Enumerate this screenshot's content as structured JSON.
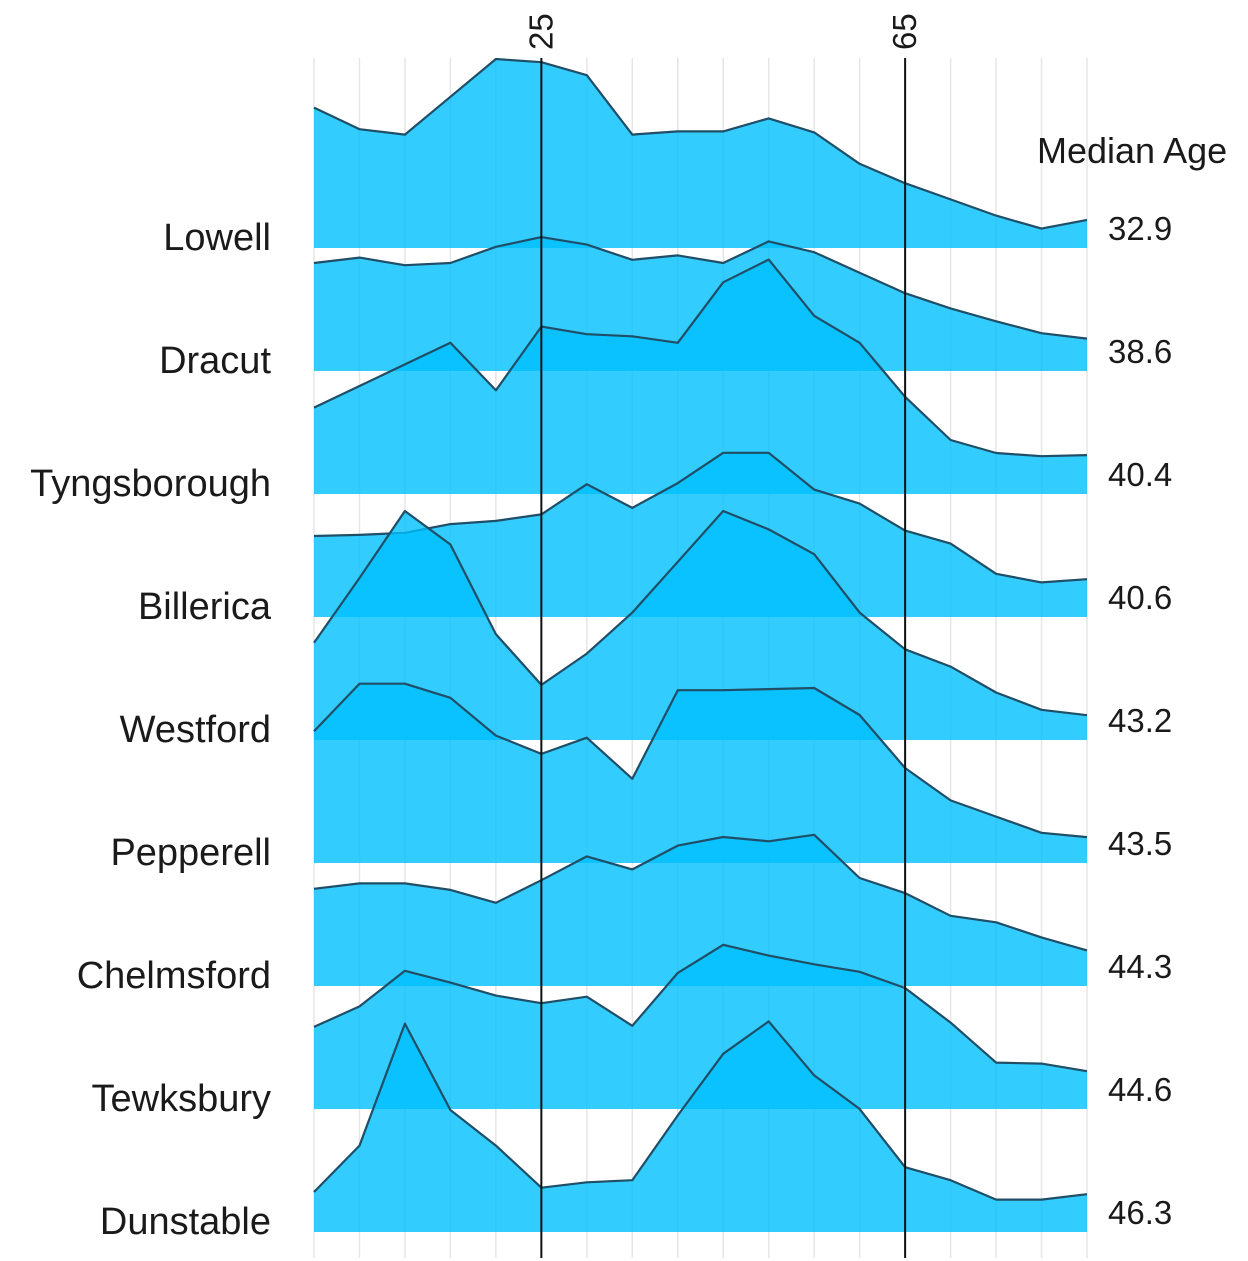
{
  "chart_data": {
    "type": "area",
    "subtype": "ridgeline",
    "x": [
      0,
      5,
      10,
      15,
      20,
      25,
      30,
      35,
      40,
      45,
      50,
      55,
      60,
      65,
      70,
      75,
      80,
      85
    ],
    "reference_lines": [
      {
        "x": 25,
        "label": "25"
      },
      {
        "x": 65,
        "label": "65"
      }
    ],
    "median_title": "Median Age",
    "fill_color": "#00bfff",
    "line_color": "#1f4e66",
    "grid": true,
    "series": [
      {
        "name": "Lowell",
        "median": "32.9",
        "values": [
          1.3,
          1.1,
          1.05,
          1.4,
          1.75,
          1.72,
          1.6,
          1.05,
          1.08,
          1.08,
          1.2,
          1.07,
          0.78,
          0.6,
          0.45,
          0.3,
          0.18,
          0.26
        ]
      },
      {
        "name": "Dracut",
        "median": "38.6",
        "values": [
          1.0,
          1.05,
          0.98,
          1.0,
          1.15,
          1.24,
          1.17,
          1.03,
          1.07,
          1.0,
          1.2,
          1.1,
          0.91,
          0.72,
          0.58,
          0.46,
          0.35,
          0.3
        ]
      },
      {
        "name": "Tyngsborough",
        "median": "40.4",
        "values": [
          0.8,
          1.0,
          1.2,
          1.4,
          0.96,
          1.55,
          1.48,
          1.46,
          1.4,
          1.96,
          2.17,
          1.65,
          1.4,
          0.9,
          0.5,
          0.38,
          0.35,
          0.36
        ]
      },
      {
        "name": "Billerica",
        "median": "40.6",
        "values": [
          0.75,
          0.76,
          0.78,
          0.86,
          0.89,
          0.95,
          1.23,
          1.01,
          1.24,
          1.52,
          1.52,
          1.18,
          1.05,
          0.8,
          0.68,
          0.4,
          0.32,
          0.35
        ]
      },
      {
        "name": "Westford",
        "median": "43.2",
        "values": [
          0.9,
          1.5,
          2.12,
          1.81,
          0.98,
          0.51,
          0.8,
          1.18,
          1.65,
          2.12,
          1.95,
          1.72,
          1.18,
          0.84,
          0.68,
          0.44,
          0.28,
          0.23
        ]
      },
      {
        "name": "Pepperell",
        "median": "43.5",
        "values": [
          1.22,
          1.66,
          1.66,
          1.53,
          1.18,
          1.01,
          1.16,
          0.78,
          1.6,
          1.6,
          1.61,
          1.62,
          1.37,
          0.88,
          0.58,
          0.43,
          0.28,
          0.24
        ]
      },
      {
        "name": "Chelmsford",
        "median": "44.3",
        "values": [
          0.9,
          0.95,
          0.95,
          0.89,
          0.77,
          0.98,
          1.2,
          1.08,
          1.3,
          1.38,
          1.34,
          1.4,
          1.0,
          0.86,
          0.65,
          0.59,
          0.45,
          0.33
        ]
      },
      {
        "name": "Tewksbury",
        "median": "44.6",
        "values": [
          0.76,
          0.95,
          1.28,
          1.17,
          1.05,
          0.98,
          1.04,
          0.77,
          1.26,
          1.52,
          1.42,
          1.34,
          1.27,
          1.12,
          0.8,
          0.43,
          0.42,
          0.35
        ]
      },
      {
        "name": "Dunstable",
        "median": "46.3",
        "values": [
          0.37,
          0.8,
          1.93,
          1.13,
          0.8,
          0.41,
          0.46,
          0.48,
          1.08,
          1.65,
          1.95,
          1.45,
          1.14,
          0.6,
          0.48,
          0.3,
          0.3,
          0.35
        ]
      }
    ]
  }
}
